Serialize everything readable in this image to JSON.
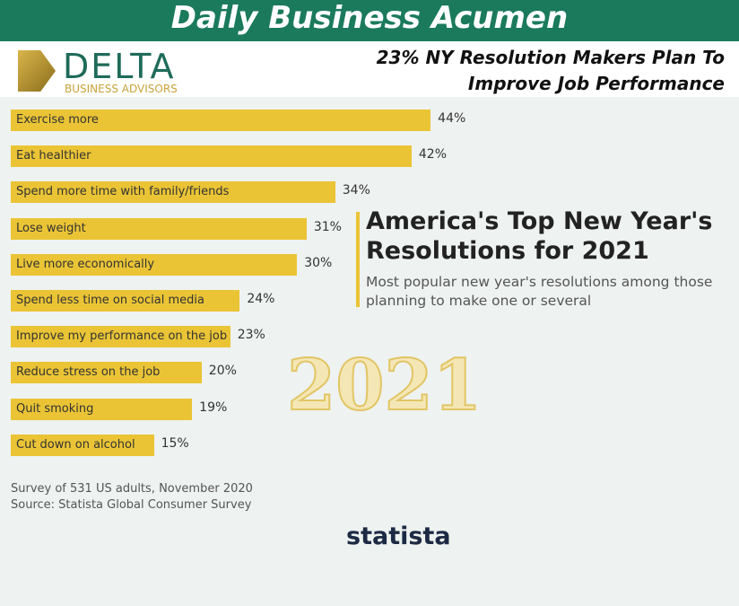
{
  "header": {
    "title": "Daily Business Acumen",
    "logo": "DELTA",
    "logo_tagline": "BUSINESS ADVISORS",
    "headline": "23% NY Resolution Makers Plan To Improve Job Performance"
  },
  "chart_data": {
    "type": "bar",
    "orientation": "horizontal",
    "title": "America's Top New Year's Resolutions for 2021",
    "subtitle": "Most popular new year's resolutions among those planning to make one or several",
    "categories": [
      "Exercise more",
      "Eat healthier",
      "Spend more time with family/friends",
      "Lose weight",
      "Live more economically",
      "Spend less time on social media",
      "Improve my performance on the job",
      "Reduce stress on the job",
      "Quit smoking",
      "Cut down on alcohol"
    ],
    "values": [
      44,
      42,
      34,
      31,
      30,
      24,
      23,
      20,
      19,
      15
    ],
    "value_labels": [
      "44%",
      "42%",
      "34%",
      "31%",
      "30%",
      "24%",
      "23%",
      "20%",
      "19%",
      "15%"
    ],
    "color": "#eac435"
  },
  "decoration": "2021",
  "footer": {
    "note": "Survey of 531 US adults, November 2020",
    "source": "Source: Statista Global Consumer Survey",
    "brand": "statista"
  }
}
